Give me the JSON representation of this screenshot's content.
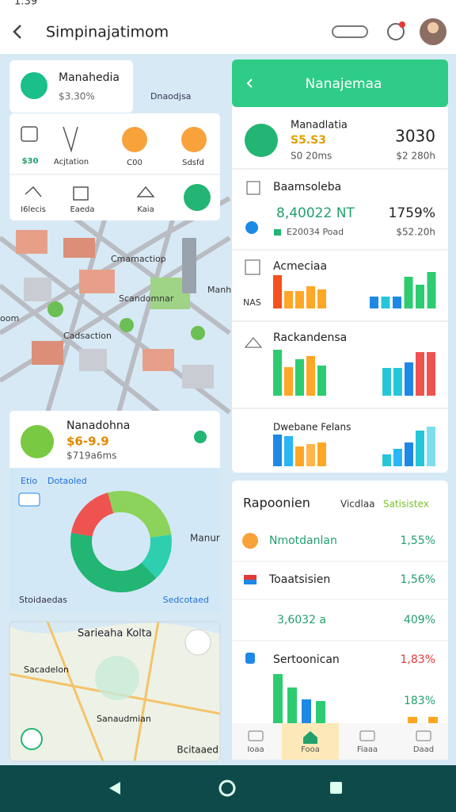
{
  "status_bar": {
    "time": "1:39"
  },
  "header": {
    "title": "Simpinajatimom"
  },
  "summary_card": {
    "title": "Manahedia",
    "value": "$3.30%"
  },
  "map_caption": "Dnaodjsa",
  "quick_actions": [
    "$30",
    "Acjtation",
    "C00",
    "Sdsfd",
    "I6lecis",
    "Eaeda",
    "Kaia"
  ],
  "map_places": [
    "Cmamactiop",
    "Scandomnar",
    "Manh",
    "oom",
    "Cadsaction"
  ],
  "donut_card": {
    "title": "Nanadohna",
    "value": "$6-9.9",
    "subtitle": "$719a6ms",
    "tabs": [
      "Etio",
      "Dotaoled"
    ],
    "place": "Manur",
    "footer": [
      "Stoidaedas",
      "Sedcotaed"
    ],
    "chart": {
      "type": "pie",
      "values": [
        18,
        27,
        15,
        40
      ],
      "colors": [
        "#ef5350",
        "#8bd35a",
        "#2dcfb0",
        "#22b573"
      ]
    }
  },
  "route_card": {
    "title": "Sarieaha Kolta",
    "places": [
      "Sacadelon",
      "Sanaudmian",
      "Bcitaaed"
    ]
  },
  "panel": {
    "title": "Nanajemaa",
    "items": [
      {
        "name": "Manadlatia",
        "value": "S5.S3",
        "detail": "S0 20ms",
        "amount": "3030",
        "amount_detail": "$2 280h"
      },
      {
        "name": "Baamsoleba",
        "value": "8,40022 NT",
        "detail": "E20034 Poad",
        "amount": "1759%",
        "amount_detail": "$52.20h"
      }
    ],
    "charts": [
      {
        "type": "bar",
        "title": "Acmeciaa",
        "axis_label": "NAS",
        "series": [
          {
            "values": [
              42,
              22,
              22,
              28,
              24
            ],
            "colors": [
              "#f4511e",
              "#ffa726",
              "#ffa726",
              "#ffa726",
              "#ffa726"
            ]
          },
          {
            "values": [
              15,
              15,
              15,
              40,
              30,
              46
            ],
            "colors": [
              "#1e88e5",
              "#26c6da",
              "#1e88e5",
              "#2ecc71",
              "#2ecc71",
              "#2ecc71"
            ]
          }
        ]
      },
      {
        "type": "bar",
        "title": "Rackandensa",
        "series": [
          {
            "values": [
              58,
              36,
              46,
              50,
              38
            ],
            "colors": [
              "#2ecc71",
              "#ffa726",
              "#2ecc71",
              "#ffa726",
              "#2ecc71"
            ]
          },
          {
            "values": [
              35,
              35,
              42,
              55,
              55
            ],
            "colors": [
              "#26c6da",
              "#26c6da",
              "#1e88e5",
              "#ef5350",
              "#ef5350"
            ]
          }
        ]
      },
      {
        "type": "bar",
        "title": "Dwebane Felans",
        "series": [
          {
            "values": [
              40,
              38,
              25,
              28,
              30
            ],
            "colors": [
              "#1e88e5",
              "#29b6f6",
              "#ffa726",
              "#ffb74d",
              "#ffa726"
            ]
          },
          {
            "values": [
              15,
              22,
              30,
              45,
              50
            ],
            "colors": [
              "#26c6da",
              "#29b6f6",
              "#1e88e5",
              "#26c6da",
              "#80deea"
            ]
          }
        ]
      }
    ]
  },
  "stats": {
    "title": "Rapoonien",
    "tabs": [
      "Vicdlaa",
      "Satisistex"
    ],
    "rows": [
      {
        "name": "Nmotdanlan",
        "value": "1,55%"
      },
      {
        "name": "Toaatsisien",
        "value": "1,56%"
      },
      {
        "name": "3,6032 a",
        "value": "409%"
      },
      {
        "name": "Sertoonican",
        "value": "1,83%"
      }
    ],
    "chart": {
      "type": "bar",
      "caption": "183%",
      "series": [
        {
          "values": [
            62,
            45,
            30,
            28
          ],
          "colors": [
            "#2ecc71",
            "#2ecc71",
            "#1e88e5",
            "#2ecc71"
          ]
        },
        {
          "values": [
            8,
            8
          ],
          "colors": [
            "#ffa726",
            "#ffa726"
          ]
        }
      ]
    }
  },
  "nav": [
    "Ioaa",
    "Fooa",
    "Fiaaa",
    "Daad"
  ]
}
